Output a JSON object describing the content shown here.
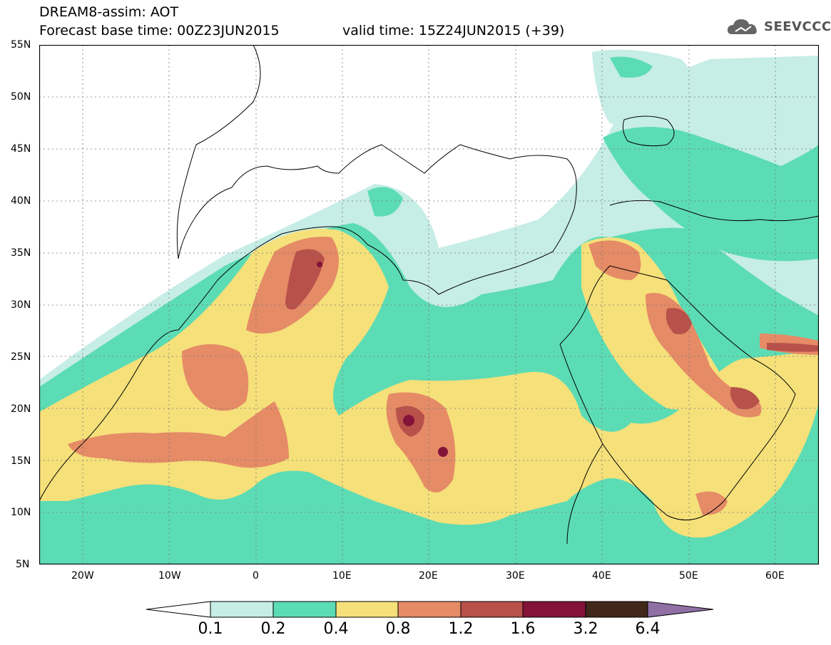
{
  "header": {
    "model_title": "DREAM8-assim: AOT",
    "base_time": "Forecast base time: 00Z23JUN2015",
    "valid_time": "valid time: 15Z24JUN2015 (+39)",
    "logo_text": "SEEVCCC"
  },
  "map": {
    "lat_labels": [
      "55N",
      "50N",
      "45N",
      "40N",
      "35N",
      "30N",
      "25N",
      "20N",
      "15N",
      "10N",
      "5N"
    ],
    "lon_labels": [
      "20W",
      "10W",
      "0",
      "10E",
      "20E",
      "30E",
      "40E",
      "50E",
      "60E"
    ],
    "extent": {
      "lon_min": -25,
      "lon_max": 65,
      "lat_min": 5,
      "lat_max": 55
    }
  },
  "colorbar": {
    "labels": [
      "0.1",
      "0.2",
      "0.4",
      "0.8",
      "1.2",
      "1.6",
      "3.2",
      "6.4"
    ],
    "colors": [
      "#c6ede6",
      "#5cdcb4",
      "#f5e07a",
      "#e58b66",
      "#b8514a",
      "#84133a",
      "#41281b",
      "#8f6fa4"
    ]
  }
}
